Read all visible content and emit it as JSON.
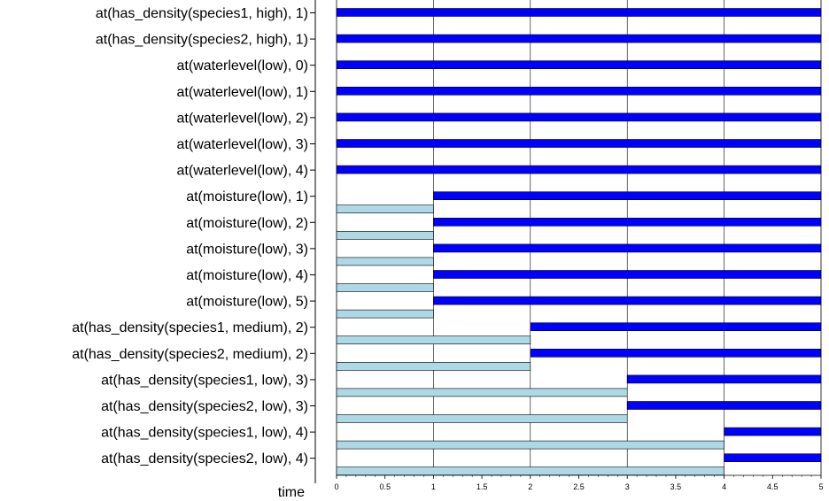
{
  "chart_data": {
    "type": "bar",
    "title": "",
    "xlabel": "time",
    "ylabel": "",
    "xlim": [
      0,
      5
    ],
    "xticks": [
      "0",
      "0.5",
      "1",
      "1.5",
      "2",
      "2.5",
      "3",
      "3.5",
      "4",
      "4.5",
      "5"
    ],
    "grid": true,
    "legend": "none",
    "colors": {
      "true": "#0000ff",
      "false": "#add8e6",
      "stroke": "#000000",
      "grid": "#000000"
    },
    "series": [
      {
        "name": "true",
        "color": "#0000ff"
      },
      {
        "name": "false",
        "color": "#add8e6"
      }
    ],
    "categories": [
      "at(has_density(species1, high), 1)",
      "at(has_density(species2, high), 1)",
      "at(waterlevel(low), 0)",
      "at(waterlevel(low), 1)",
      "at(waterlevel(low), 2)",
      "at(waterlevel(low), 3)",
      "at(waterlevel(low), 4)",
      "at(moisture(low), 1)",
      "at(moisture(low), 2)",
      "at(moisture(low), 3)",
      "at(moisture(low), 4)",
      "at(moisture(low), 5)",
      "at(has_density(species1, medium), 2)",
      "at(has_density(species2, medium), 2)",
      "at(has_density(species1, low), 3)",
      "at(has_density(species2, low), 3)",
      "at(has_density(species1, low), 4)",
      "at(has_density(species2, low), 4)"
    ],
    "rows": [
      {
        "false_interval": null,
        "true_interval": [
          0,
          5
        ]
      },
      {
        "false_interval": null,
        "true_interval": [
          0,
          5
        ]
      },
      {
        "false_interval": null,
        "true_interval": [
          0,
          5
        ]
      },
      {
        "false_interval": null,
        "true_interval": [
          0,
          5
        ]
      },
      {
        "false_interval": null,
        "true_interval": [
          0,
          5
        ]
      },
      {
        "false_interval": null,
        "true_interval": [
          0,
          5
        ]
      },
      {
        "false_interval": null,
        "true_interval": [
          0,
          5
        ]
      },
      {
        "false_interval": [
          0,
          1
        ],
        "true_interval": [
          1,
          5
        ]
      },
      {
        "false_interval": [
          0,
          1
        ],
        "true_interval": [
          1,
          5
        ]
      },
      {
        "false_interval": [
          0,
          1
        ],
        "true_interval": [
          1,
          5
        ]
      },
      {
        "false_interval": [
          0,
          1
        ],
        "true_interval": [
          1,
          5
        ]
      },
      {
        "false_interval": [
          0,
          1
        ],
        "true_interval": [
          1,
          5
        ]
      },
      {
        "false_interval": [
          0,
          2
        ],
        "true_interval": [
          2,
          5
        ]
      },
      {
        "false_interval": [
          0,
          2
        ],
        "true_interval": [
          2,
          5
        ]
      },
      {
        "false_interval": [
          0,
          3
        ],
        "true_interval": [
          3,
          5
        ]
      },
      {
        "false_interval": [
          0,
          3
        ],
        "true_interval": [
          3,
          5
        ]
      },
      {
        "false_interval": [
          0,
          4
        ],
        "true_interval": [
          4,
          5
        ]
      },
      {
        "false_interval": [
          0,
          4
        ],
        "true_interval": [
          4,
          5
        ]
      }
    ]
  }
}
